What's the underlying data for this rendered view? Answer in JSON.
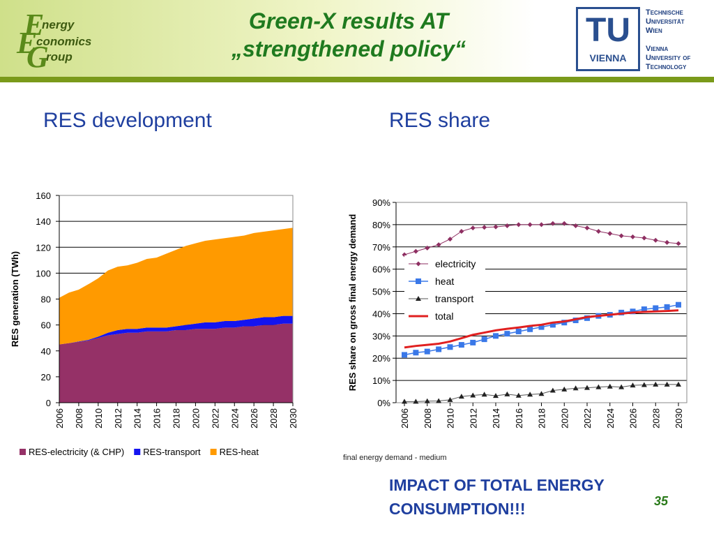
{
  "logo": {
    "letter_e1": "E",
    "letter_e2": "E",
    "letter_g": "G",
    "word1": "nergy",
    "word2": "conomics",
    "word3": "roup"
  },
  "title": {
    "line1": "Green-X results AT",
    "line2": "„strengthened policy“"
  },
  "tu_logo": {
    "badge": "TU",
    "badge_sub": "VIENNA",
    "lines": [
      "Technische",
      "Universität",
      "Wien",
      "",
      "Vienna",
      "University of",
      "Technology"
    ]
  },
  "left_title": "RES development",
  "right_title": "RES share",
  "footnote": "final energy demand - medium",
  "impact": {
    "line1": "IMPACT OF TOTAL ENERGY",
    "line2": "CONSUMPTION!!!"
  },
  "page_number": "35",
  "colors": {
    "electricity_area": "#953167",
    "transport_area": "#1414f0",
    "heat_area": "#ff9a00",
    "electricity_line": "#8e2f62",
    "heat_line": "#3a78e8",
    "transport_line": "#222222",
    "total_line": "#e02020"
  },
  "chart_data": [
    {
      "type": "area",
      "stacked": true,
      "title": "RES development",
      "xlabel": "",
      "ylabel": "RES generation (TWh)",
      "ylim": [
        0,
        160
      ],
      "yticks": [
        "0",
        "20",
        "40",
        "60",
        "80",
        "100",
        "120",
        "140",
        "160"
      ],
      "xticks": [
        "2006",
        "2008",
        "2010",
        "2012",
        "2014",
        "2016",
        "2018",
        "2020",
        "2022",
        "2024",
        "2026",
        "2028",
        "2030"
      ],
      "x": [
        2006,
        2007,
        2008,
        2009,
        2010,
        2011,
        2012,
        2013,
        2014,
        2015,
        2016,
        2017,
        2018,
        2019,
        2020,
        2021,
        2022,
        2023,
        2024,
        2025,
        2026,
        2027,
        2028,
        2029,
        2030
      ],
      "series": [
        {
          "name": "RES-electricity (& CHP)",
          "values": [
            45,
            46,
            47,
            48,
            50,
            52,
            53,
            54,
            54,
            55,
            55,
            55,
            56,
            56,
            57,
            57,
            57,
            58,
            58,
            59,
            59,
            60,
            60,
            61,
            61
          ]
        },
        {
          "name": "RES-transport",
          "values": [
            0,
            0,
            0.3,
            0.5,
            1,
            2,
            3,
            3,
            3,
            3,
            3,
            3,
            3,
            4,
            4,
            5,
            5,
            5,
            5,
            5,
            6,
            6,
            6,
            6,
            6
          ]
        },
        {
          "name": "RES-heat",
          "values": [
            36,
            39,
            40,
            43,
            45,
            48,
            49,
            49,
            51,
            53,
            54,
            57,
            59,
            61,
            62,
            63,
            64,
            64,
            65,
            65,
            66,
            66,
            67,
            67,
            68
          ]
        }
      ],
      "legend": "bottom"
    },
    {
      "type": "line",
      "title": "RES share",
      "xlabel": "",
      "ylabel": "RES share on gross final energy demand",
      "ylim": [
        0,
        90
      ],
      "yticks": [
        "0%",
        "10%",
        "20%",
        "30%",
        "40%",
        "50%",
        "60%",
        "70%",
        "80%",
        "90%"
      ],
      "xticks": [
        "2006",
        "2008",
        "2010",
        "2012",
        "2014",
        "2016",
        "2018",
        "2020",
        "2022",
        "2024",
        "2026",
        "2028",
        "2030"
      ],
      "x": [
        2006,
        2007,
        2008,
        2009,
        2010,
        2011,
        2012,
        2013,
        2014,
        2015,
        2016,
        2017,
        2018,
        2019,
        2020,
        2021,
        2022,
        2023,
        2024,
        2025,
        2026,
        2027,
        2028,
        2029,
        2030
      ],
      "series": [
        {
          "name": "electricity",
          "values": [
            66.5,
            68,
            69.5,
            71,
            73.5,
            77,
            78.5,
            78.8,
            79,
            79.5,
            80,
            80,
            80,
            80.5,
            80.5,
            79.5,
            78.5,
            77,
            76,
            75,
            74.5,
            74,
            73,
            72,
            71.5
          ]
        },
        {
          "name": "heat",
          "values": [
            21.5,
            22.5,
            23,
            24,
            25,
            26,
            27,
            28.5,
            30,
            31,
            32,
            33,
            34,
            35,
            36,
            37,
            38,
            39,
            39.5,
            40.5,
            41,
            42,
            42.5,
            43,
            44
          ]
        },
        {
          "name": "transport",
          "values": [
            0.5,
            0.5,
            0.7,
            0.8,
            1.3,
            2.8,
            3.3,
            3.7,
            3.1,
            3.8,
            3.2,
            3.7,
            4,
            5.5,
            6,
            6.5,
            6.7,
            7,
            7.3,
            7,
            7.8,
            8,
            8.2,
            8.2,
            8.2
          ]
        },
        {
          "name": "total",
          "values": [
            24.8,
            25.5,
            26,
            26.5,
            27.5,
            29,
            30.5,
            31.5,
            32.5,
            33.2,
            33.8,
            34.5,
            35,
            36,
            36.5,
            37.5,
            38.5,
            39,
            39.5,
            40,
            40.5,
            40.8,
            41,
            41.2,
            41.5
          ]
        }
      ],
      "legend": "inside-left"
    }
  ]
}
